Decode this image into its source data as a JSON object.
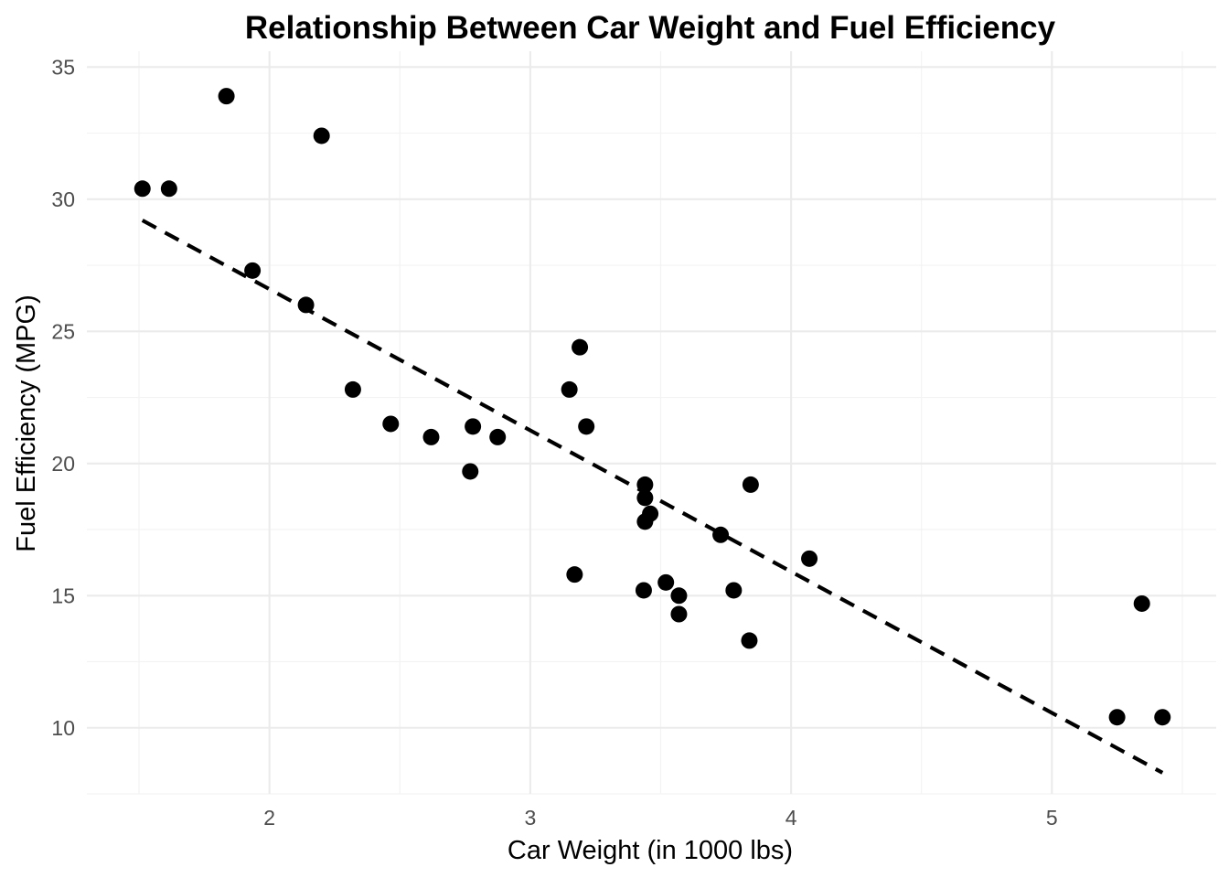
{
  "chart_data": {
    "type": "scatter",
    "title": "Relationship Between Car Weight and Fuel Efficiency",
    "xlabel": "Car Weight (in 1000 lbs)",
    "ylabel": "Fuel Efficiency (MPG)",
    "xlim": [
      1.3,
      5.63
    ],
    "ylim": [
      7.5,
      35.6
    ],
    "xticks": [
      2,
      3,
      4,
      5
    ],
    "yticks": [
      10,
      15,
      20,
      25,
      30,
      35
    ],
    "grid": true,
    "legend": "none",
    "point_color": "#000000",
    "points": [
      {
        "x": 2.62,
        "y": 21.0
      },
      {
        "x": 2.875,
        "y": 21.0
      },
      {
        "x": 2.32,
        "y": 22.8
      },
      {
        "x": 3.215,
        "y": 21.4
      },
      {
        "x": 3.44,
        "y": 18.7
      },
      {
        "x": 3.46,
        "y": 18.1
      },
      {
        "x": 3.57,
        "y": 14.3
      },
      {
        "x": 3.19,
        "y": 24.4
      },
      {
        "x": 3.15,
        "y": 22.8
      },
      {
        "x": 3.44,
        "y": 19.2
      },
      {
        "x": 3.44,
        "y": 17.8
      },
      {
        "x": 4.07,
        "y": 16.4
      },
      {
        "x": 3.73,
        "y": 17.3
      },
      {
        "x": 3.78,
        "y": 15.2
      },
      {
        "x": 5.25,
        "y": 10.4
      },
      {
        "x": 5.424,
        "y": 10.4
      },
      {
        "x": 5.345,
        "y": 14.7
      },
      {
        "x": 2.2,
        "y": 32.4
      },
      {
        "x": 1.615,
        "y": 30.4
      },
      {
        "x": 1.835,
        "y": 33.9
      },
      {
        "x": 2.465,
        "y": 21.5
      },
      {
        "x": 3.52,
        "y": 15.5
      },
      {
        "x": 3.435,
        "y": 15.2
      },
      {
        "x": 3.84,
        "y": 13.3
      },
      {
        "x": 3.845,
        "y": 19.2
      },
      {
        "x": 1.935,
        "y": 27.3
      },
      {
        "x": 2.14,
        "y": 26.0
      },
      {
        "x": 1.513,
        "y": 30.4
      },
      {
        "x": 3.17,
        "y": 15.8
      },
      {
        "x": 2.77,
        "y": 19.7
      },
      {
        "x": 3.57,
        "y": 15.0
      },
      {
        "x": 2.78,
        "y": 21.4
      }
    ],
    "trend_line": {
      "style": "dashed",
      "color": "#000000",
      "intercept": 37.285,
      "slope": -5.344,
      "x_range": [
        1.513,
        5.424
      ]
    }
  }
}
